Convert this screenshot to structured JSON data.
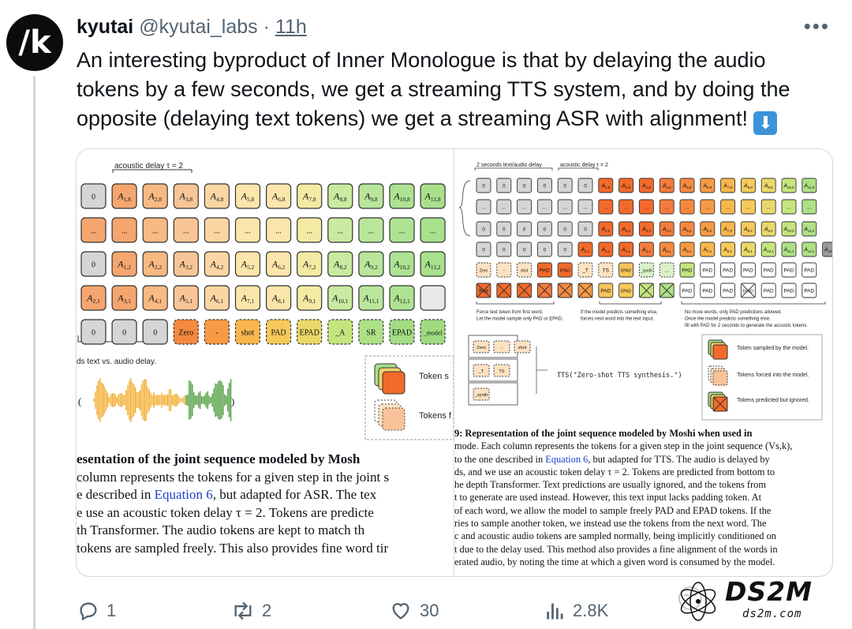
{
  "author": {
    "name": "kyutai",
    "handle": "@kyutai_labs",
    "separator": "·",
    "time": "11h",
    "avatar_glyph": "/k"
  },
  "tweet": {
    "line1": "An interesting byproduct of Inner Monologue is that by delaying the audio",
    "line2": "tokens by a few seconds, we get a streaming TTS system, and by doing the",
    "line3": "opposite (delaying text tokens) we get a streaming ASR with alignment!",
    "emoji": "⬇"
  },
  "left_figure": {
    "delay_label": "acoustic delay τ = 2",
    "side_label": "ds text vs. audio delay.",
    "row1": [
      "0",
      "A1,8",
      "A2,8",
      "A3,8",
      "A4,8",
      "A5,8",
      "A6,8",
      "A7,8",
      "A8,8",
      "A9,8",
      "A10,8",
      "A11,8"
    ],
    "row2": [
      "...",
      "...",
      "...",
      "...",
      "...",
      "...",
      "...",
      "...",
      "...",
      "...",
      "...",
      "..."
    ],
    "row3": [
      "0",
      "A1,2",
      "A2,2",
      "A3,2",
      "A4,2",
      "A5,2",
      "A6,2",
      "A7,2",
      "A8,2",
      "A9,2",
      "A10,2",
      "A11,2"
    ],
    "row4": [
      "A2,1",
      "A3,1",
      "A4,1",
      "A5,1",
      "A6,1",
      "A7,1",
      "A8,1",
      "A9,1",
      "A10,1",
      "A11,1",
      "A12,1",
      ""
    ],
    "row5": [
      "0",
      "0",
      "0",
      "Zero",
      "-",
      "shot",
      "PAD",
      "EPAD",
      "_A",
      "SR",
      "EPAD",
      "_model"
    ],
    "legend": [
      "Token s",
      "Tokens f"
    ],
    "caption": [
      "esentation of the joint sequence modeled by Mosh",
      "column represents the tokens for a given step in the joint s",
      "e described in Equation 6, but adapted for ASR. The tex",
      "e use an acoustic token delay τ = 2. Tokens are predicte",
      "th Transformer. The audio tokens are kept to match th",
      "tokens are sampled freely. This also provides fine word tir"
    ]
  },
  "right_figure": {
    "label_text_audio_delay": "2 seconds text/audio delay",
    "label_acoustic_delay": "acoustic delay τ = 2",
    "row1": [
      "0",
      "0",
      "0",
      "0",
      "0",
      "0",
      "A1,8",
      "A2,8",
      "A3,8",
      "A4,8",
      "A5,8",
      "A6,8",
      "A7,8",
      "A8,8",
      "A9,8",
      "A10,8",
      "A11,8"
    ],
    "row3": [
      "0",
      "0",
      "0",
      "0",
      "0",
      "0",
      "A1,2",
      "A2,2",
      "A3,2",
      "A4,2",
      "A5,2",
      "A6,2",
      "A7,2",
      "A8,2",
      "A9,2",
      "A10,2",
      "A11,2"
    ],
    "row4": [
      "0",
      "0",
      "0",
      "0",
      "0",
      "A1,1",
      "A2,1",
      "A3,1",
      "A4,1",
      "A5,1",
      "A6,1",
      "A7,1",
      "A8,1",
      "A9,1",
      "A10,1",
      "A11,1",
      "A12,1",
      "A13,1"
    ],
    "row5": [
      "Zero",
      "-",
      "shot",
      "PAD",
      "EPAD",
      "_T",
      "TS",
      "EPAD",
      "_synth",
      "...",
      "PAD",
      "PAD",
      "PAD",
      "PAD",
      "PAD",
      "PAD",
      "PAD"
    ],
    "note1": [
      "Force text token from first word.",
      "Let the model sample only PAD or EPAD."
    ],
    "note2": [
      "If the model predicts something else,",
      "forces next word into the text input."
    ],
    "note3": [
      "No more words, only PAD predictions allowed.",
      "Once the model predicts something else,",
      "fill with PAD for 2 seconds to generate the acoustic tokens."
    ],
    "words_left": [
      "Zero",
      "-",
      "shot",
      "_T",
      "TS",
      "_synth"
    ],
    "tts_call": "TTS(\"Zero-shot TTS synthesis.\")",
    "legend": [
      "Token sampled by the model.",
      "Tokens forced into the model.",
      "Tokens predicted but ignored."
    ],
    "caption": [
      "9: Representation of the joint sequence modeled by Moshi when used in",
      "mode. Each column represents the tokens for a given step in the joint sequence (Vs,k),",
      "to the one described in Equation 6, but adapted for TTS. The audio is delayed by",
      "ds, and we use an acoustic token delay τ = 2. Tokens are predicted from bottom to",
      "he depth Transformer. Text predictions are usually ignored, and the tokens from",
      "t to generate are used instead. However, this text input lacks padding token. At",
      "of each word, we allow the model to sample freely PAD and EPAD tokens. If the",
      "ries to sample another token, we instead use the tokens from the next word. The",
      "c and acoustic audio tokens are sampled normally, being implicitly conditioned on",
      "t due to the delay used. This method also provides a fine alignment of the words in",
      "erated audio, by noting the time at which a given word is consumed by the model."
    ]
  },
  "actions": {
    "replies": "1",
    "reposts": "2",
    "likes": "30",
    "views": "2.8K"
  },
  "watermark": {
    "brand": "DS2M",
    "url": "ds2m.com"
  }
}
